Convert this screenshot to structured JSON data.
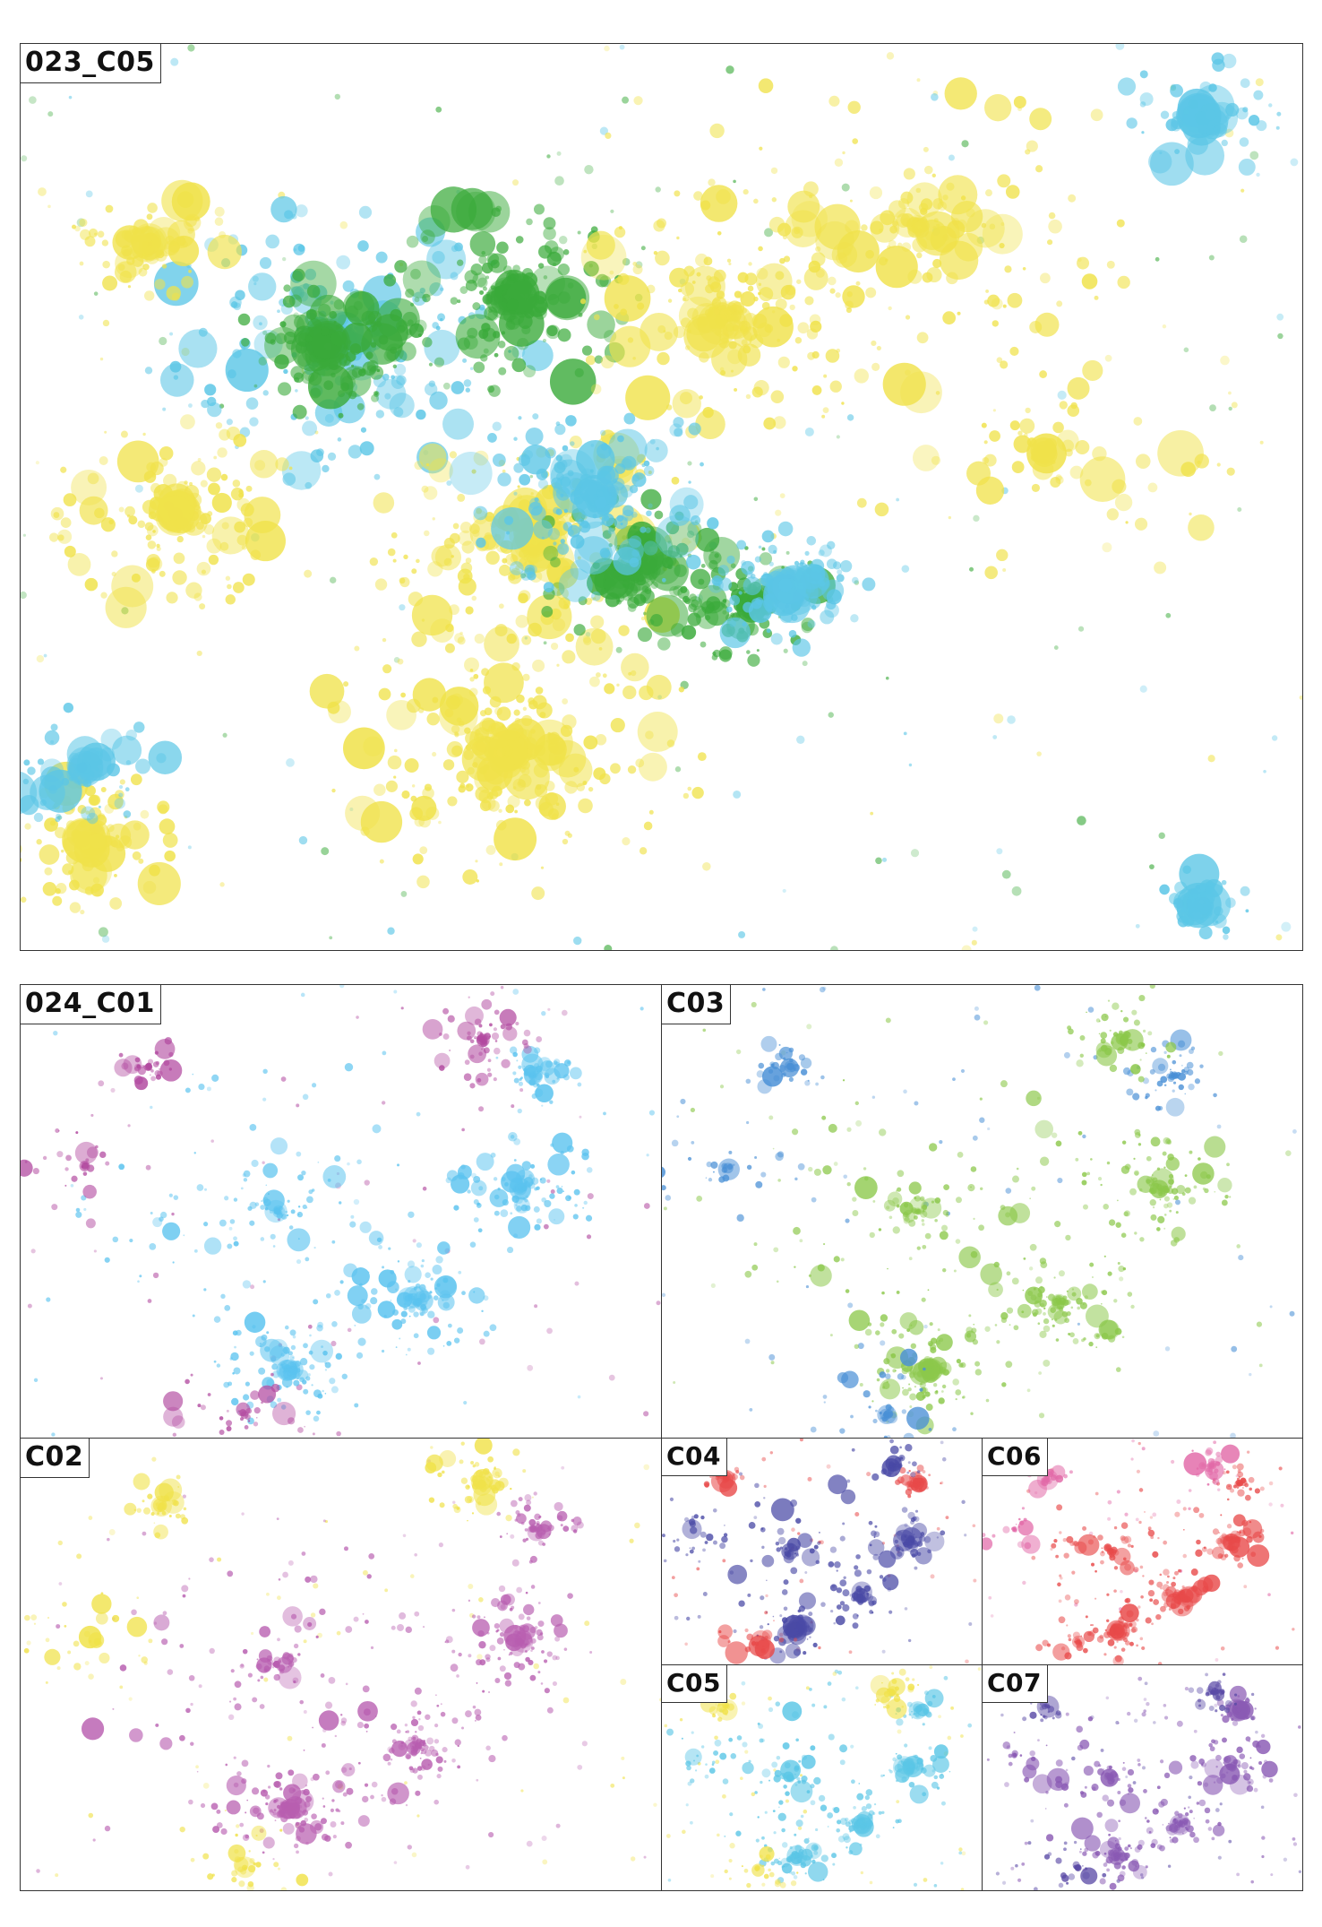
{
  "panels": [
    {
      "id": "p023",
      "label": "023_C05",
      "colors": [
        "#f0e24a",
        "#5bc6e6",
        "#3aaa3a"
      ]
    },
    {
      "id": "p024",
      "label": "024_C01",
      "colors": [
        "#5bc3ef",
        "#b24aa0"
      ]
    },
    {
      "id": "pC03",
      "label": "C03",
      "colors": [
        "#8cc84b",
        "#4a90d6"
      ]
    },
    {
      "id": "pC02",
      "label": "C02",
      "colors": [
        "#b85eb0",
        "#f0e24a"
      ]
    },
    {
      "id": "pC04",
      "label": "C04",
      "colors": [
        "#4a4aa6",
        "#e84a4a"
      ]
    },
    {
      "id": "pC06",
      "label": "C06",
      "colors": [
        "#e84a4a",
        "#e26aa8"
      ]
    },
    {
      "id": "pC05",
      "label": "C05",
      "colors": [
        "#5bc6e6",
        "#f0e24a"
      ]
    },
    {
      "id": "pC07",
      "label": "C07",
      "colors": [
        "#8a5ab4",
        "#5a4aa6"
      ]
    }
  ]
}
